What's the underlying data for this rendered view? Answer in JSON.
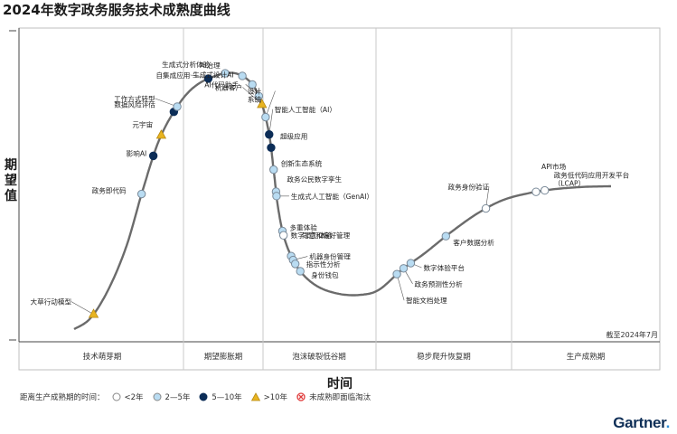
{
  "title": "2024年数字政务服务技术成熟度曲线",
  "chart_data": {
    "type": "hype-cycle",
    "ylabel": "期望值",
    "xlabel": "时间",
    "as_of": "截至2024年7月",
    "phases": [
      "技术萌芽期",
      "期望膨胀期",
      "泡沫破裂低谷期",
      "稳步爬升恢复期",
      "生产成熟期"
    ],
    "legend_title": "距离生产成熟期的时间：",
    "legend": [
      {
        "key": "lt2",
        "label": "<2年"
      },
      {
        "key": "2to5",
        "label": "2—5年"
      },
      {
        "key": "5to10",
        "label": "5—10年"
      },
      {
        "key": "gt10",
        "label": ">10年"
      },
      {
        "key": "obsolete",
        "label": "未成熟即面临淘汰"
      }
    ],
    "colors": {
      "lt2": "#ffffff",
      "2to5": "#b9dcf2",
      "5to10": "#0c2d57",
      "gt10": "#e8b420",
      "obsolete": "#e03a3a",
      "curve": "#6b6b6b",
      "divider": "#c8c8c8"
    },
    "technologies": [
      {
        "label": "大草行动模型",
        "t": 0.028,
        "class": "gt10"
      },
      {
        "label": "政务即代码",
        "t": 0.175,
        "class": "2to5"
      },
      {
        "label": "影响AI",
        "t": 0.22,
        "class": "5to10"
      },
      {
        "label": "元宇宙",
        "t": 0.245,
        "class": "gt10"
      },
      {
        "label": "数据风险评估",
        "t": 0.275,
        "class": "5to10"
      },
      {
        "label": "工作方式转型",
        "t": 0.282,
        "class": "2to5"
      },
      {
        "label": "自集成应用",
        "t": 0.33,
        "class": "5to10"
      },
      {
        "label": "生成式分析体验",
        "t": 0.35,
        "class": "2to5"
      },
      {
        "label": "AI治理",
        "t": 0.37,
        "class": "2to5"
      },
      {
        "label": "生成式设计AI",
        "t": 0.385,
        "class": "2to5"
      },
      {
        "label": "AI代码助手",
        "t": 0.4,
        "class": "2to5"
      },
      {
        "label": "机器客户",
        "t": 0.41,
        "class": "gt10"
      },
      {
        "label": "设计系统",
        "t": 0.425,
        "class": "2to5"
      },
      {
        "label": "智能人工智能（AI）",
        "t": 0.445,
        "class": "5to10"
      },
      {
        "label": "超级应用",
        "t": 0.46,
        "class": "5to10"
      },
      {
        "label": "创新生态系统",
        "t": 0.485,
        "class": "2to5"
      },
      {
        "label": "政务公民数字孪生",
        "t": 0.51,
        "class": "2to5"
      },
      {
        "label": "生成式人工智能（GenAI）",
        "t": 0.515,
        "class": "2to5"
      },
      {
        "label": "多重体验",
        "t": 0.555,
        "class": "2to5"
      },
      {
        "label": "数字员工体验",
        "t": 0.56,
        "class": "lt2"
      },
      {
        "label": "同意和偏好管理",
        "t": 0.585,
        "class": "2to5"
      },
      {
        "label": "机器身份管理",
        "t": 0.59,
        "class": "2to5"
      },
      {
        "label": "指示性分析",
        "t": 0.595,
        "class": "2to5"
      },
      {
        "label": "身份钱包",
        "t": 0.605,
        "class": "2to5"
      },
      {
        "label": "智能文档处理",
        "t": 0.73,
        "class": "2to5"
      },
      {
        "label": "政务预测性分析",
        "t": 0.74,
        "class": "2to5"
      },
      {
        "label": "数字体验平台",
        "t": 0.75,
        "class": "2to5"
      },
      {
        "label": "客户数据分析",
        "t": 0.8,
        "class": "2to5"
      },
      {
        "label": "政务身份验证",
        "t": 0.855,
        "class": "lt2"
      },
      {
        "label": "API市场",
        "t": 0.915,
        "class": "lt2"
      },
      {
        "label": "政务低代码应用开发平台（LCAP）",
        "t": 0.925,
        "class": "lt2"
      }
    ]
  },
  "brand": {
    "name": "Gartner",
    "dot": "."
  }
}
